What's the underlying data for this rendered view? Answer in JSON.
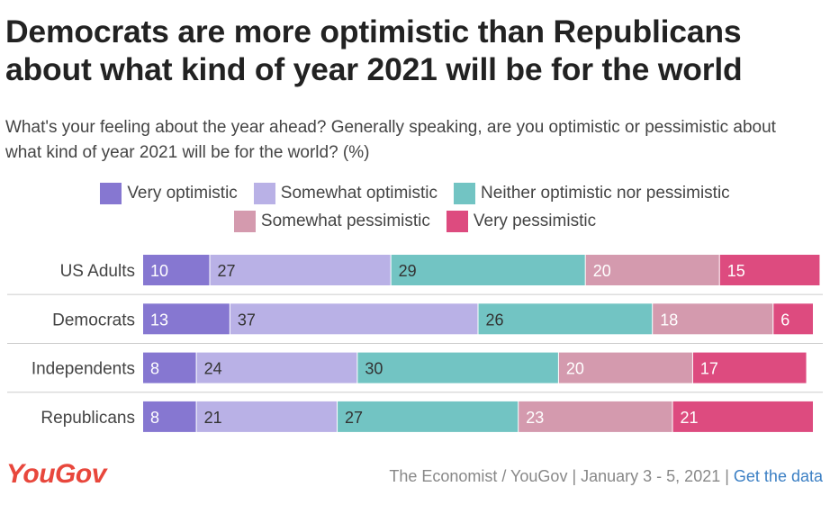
{
  "title": "Democrats are more optimistic than Republicans about what kind of year 2021 will be for the world",
  "subtitle": "What's your feeling about the year ahead? Generally speaking, are you optimistic or pessimistic about what kind of year 2021 will be for the world? (%)",
  "legend": [
    {
      "label": "Very optimistic",
      "color": "#8677d1"
    },
    {
      "label": "Somewhat optimistic",
      "color": "#b9b1e6"
    },
    {
      "label": "Neither optimistic nor pessimistic",
      "color": "#72c4c3"
    },
    {
      "label": "Somewhat pessimistic",
      "color": "#d49aae"
    },
    {
      "label": "Very pessimistic",
      "color": "#dd4b7f"
    }
  ],
  "chart_data": {
    "type": "bar",
    "orientation": "horizontal",
    "stacked": true,
    "categories": [
      "US Adults",
      "Democrats",
      "Independents",
      "Republicans"
    ],
    "series": [
      {
        "name": "Very optimistic",
        "values": [
          10,
          13,
          8,
          8
        ]
      },
      {
        "name": "Somewhat optimistic",
        "values": [
          27,
          37,
          24,
          21
        ]
      },
      {
        "name": "Neither optimistic nor pessimistic",
        "values": [
          29,
          26,
          30,
          27
        ]
      },
      {
        "name": "Somewhat pessimistic",
        "values": [
          20,
          18,
          20,
          23
        ]
      },
      {
        "name": "Very pessimistic",
        "values": [
          15,
          6,
          17,
          21
        ]
      }
    ],
    "unit": "%",
    "xlim": [
      0,
      100
    ]
  },
  "footer": {
    "logo": "YouGov",
    "source": "The Economist / YouGov | January 3 - 5, 2021 |",
    "link": "Get the data"
  }
}
